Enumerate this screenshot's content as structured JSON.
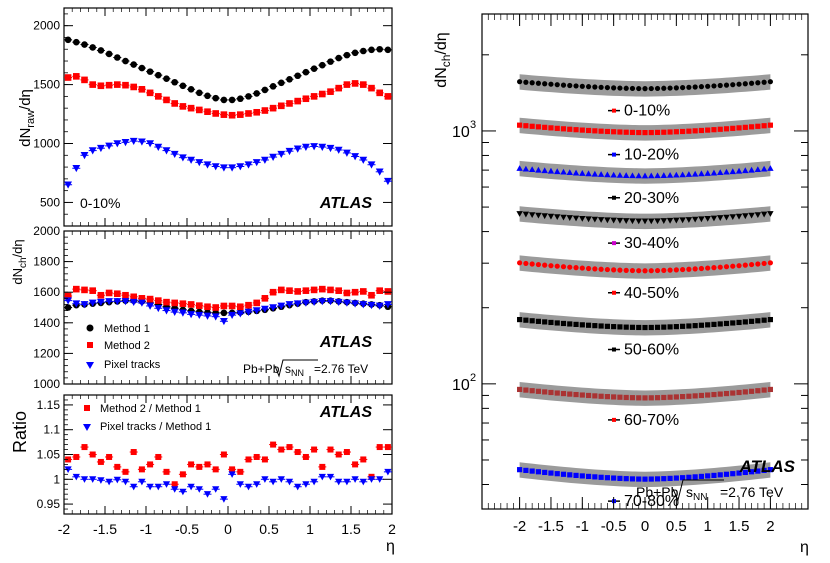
{
  "figure": {
    "atlas_label": "ATLAS",
    "collision": "Pb+Pb",
    "sqrt_s": "s",
    "sqrt_s_sub": "NN",
    "energy": "=2.76 TeV",
    "eta_symbol": "η"
  },
  "chart_data": [
    {
      "id": "raw_top",
      "type": "scatter",
      "ylabel": "dN",
      "ylabel_sub": "raw",
      "ylabel_tail": "/dη",
      "xlim": [
        -2,
        2
      ],
      "ylim": [
        300,
        2150
      ],
      "yticks": [
        500,
        1000,
        1500,
        2000
      ],
      "ytick_labels": [
        "500",
        "1000",
        "1500",
        "2000"
      ],
      "annotation": "0-10%",
      "series": [
        {
          "name": "Method 1",
          "color": "#000000",
          "marker": "circle",
          "x": [
            -1.95,
            -1.85,
            -1.75,
            -1.65,
            -1.55,
            -1.45,
            -1.35,
            -1.25,
            -1.15,
            -1.05,
            -0.95,
            -0.85,
            -0.75,
            -0.65,
            -0.55,
            -0.45,
            -0.35,
            -0.25,
            -0.15,
            -0.05,
            0.05,
            0.15,
            0.25,
            0.35,
            0.45,
            0.55,
            0.65,
            0.75,
            0.85,
            0.95,
            1.05,
            1.15,
            1.25,
            1.35,
            1.45,
            1.55,
            1.65,
            1.75,
            1.85,
            1.95
          ],
          "y": [
            1880,
            1860,
            1840,
            1815,
            1790,
            1760,
            1730,
            1700,
            1670,
            1640,
            1610,
            1580,
            1550,
            1520,
            1490,
            1460,
            1430,
            1405,
            1385,
            1370,
            1370,
            1380,
            1400,
            1425,
            1455,
            1485,
            1515,
            1545,
            1575,
            1605,
            1635,
            1665,
            1695,
            1725,
            1750,
            1770,
            1785,
            1795,
            1800,
            1795
          ]
        },
        {
          "name": "Method 2",
          "color": "#ff0000",
          "marker": "square",
          "x": [
            -1.95,
            -1.85,
            -1.75,
            -1.65,
            -1.55,
            -1.45,
            -1.35,
            -1.25,
            -1.15,
            -1.05,
            -0.95,
            -0.85,
            -0.75,
            -0.65,
            -0.55,
            -0.45,
            -0.35,
            -0.25,
            -0.15,
            -0.05,
            0.05,
            0.15,
            0.25,
            0.35,
            0.45,
            0.55,
            0.65,
            0.75,
            0.85,
            0.95,
            1.05,
            1.15,
            1.25,
            1.35,
            1.45,
            1.55,
            1.65,
            1.75,
            1.85,
            1.95
          ],
          "y": [
            1560,
            1570,
            1540,
            1500,
            1490,
            1495,
            1500,
            1495,
            1480,
            1460,
            1430,
            1400,
            1370,
            1340,
            1315,
            1300,
            1285,
            1270,
            1255,
            1245,
            1240,
            1245,
            1255,
            1265,
            1280,
            1300,
            1320,
            1340,
            1360,
            1380,
            1400,
            1420,
            1440,
            1470,
            1500,
            1510,
            1500,
            1470,
            1430,
            1400
          ]
        },
        {
          "name": "Pixel tracks",
          "color": "#0000ff",
          "marker": "triangle-down",
          "x": [
            -1.95,
            -1.85,
            -1.75,
            -1.65,
            -1.55,
            -1.45,
            -1.35,
            -1.25,
            -1.15,
            -1.05,
            -0.95,
            -0.85,
            -0.75,
            -0.65,
            -0.55,
            -0.45,
            -0.35,
            -0.25,
            -0.15,
            -0.05,
            0.05,
            0.15,
            0.25,
            0.35,
            0.45,
            0.55,
            0.65,
            0.75,
            0.85,
            0.95,
            1.05,
            1.15,
            1.25,
            1.35,
            1.45,
            1.55,
            1.65,
            1.75,
            1.85,
            1.95
          ],
          "y": [
            650,
            790,
            900,
            940,
            960,
            980,
            1000,
            1010,
            1020,
            1015,
            1000,
            970,
            940,
            910,
            880,
            860,
            840,
            820,
            805,
            795,
            795,
            805,
            820,
            840,
            860,
            885,
            910,
            935,
            955,
            970,
            975,
            970,
            960,
            945,
            920,
            890,
            860,
            820,
            760,
            680
          ]
        }
      ]
    },
    {
      "id": "dndeta_middle",
      "type": "scatter",
      "ylabel": "dN",
      "ylabel_sub": "ch",
      "ylabel_tail": "/dη",
      "xlim": [
        -2,
        2
      ],
      "ylim": [
        1000,
        2000
      ],
      "yticks": [
        1000,
        1200,
        1400,
        1600,
        1800,
        2000
      ],
      "ytick_labels": [
        "1000",
        "1200",
        "1400",
        "1600",
        "1800",
        "2000"
      ],
      "series": [
        {
          "name": "Method 1",
          "color": "#000000",
          "marker": "circle",
          "x": [
            -1.95,
            -1.85,
            -1.75,
            -1.65,
            -1.55,
            -1.45,
            -1.35,
            -1.25,
            -1.15,
            -1.05,
            -0.95,
            -0.85,
            -0.75,
            -0.65,
            -0.55,
            -0.45,
            -0.35,
            -0.25,
            -0.15,
            -0.05,
            0.05,
            0.15,
            0.25,
            0.35,
            0.45,
            0.55,
            0.65,
            0.75,
            0.85,
            0.95,
            1.05,
            1.15,
            1.25,
            1.35,
            1.45,
            1.55,
            1.65,
            1.75,
            1.85,
            1.95
          ],
          "y": [
            1500,
            1515,
            1520,
            1525,
            1530,
            1535,
            1540,
            1545,
            1545,
            1540,
            1530,
            1520,
            1505,
            1495,
            1485,
            1478,
            1472,
            1468,
            1465,
            1465,
            1465,
            1468,
            1472,
            1478,
            1485,
            1495,
            1505,
            1515,
            1525,
            1535,
            1540,
            1545,
            1545,
            1540,
            1535,
            1530,
            1525,
            1520,
            1515,
            1505
          ]
        },
        {
          "name": "Method 2",
          "color": "#ff0000",
          "marker": "square",
          "x": [
            -1.95,
            -1.85,
            -1.75,
            -1.65,
            -1.55,
            -1.45,
            -1.35,
            -1.25,
            -1.15,
            -1.05,
            -0.95,
            -0.85,
            -0.75,
            -0.65,
            -0.55,
            -0.45,
            -0.35,
            -0.25,
            -0.15,
            -0.05,
            0.05,
            0.15,
            0.25,
            0.35,
            0.45,
            0.55,
            0.65,
            0.75,
            0.85,
            0.95,
            1.05,
            1.15,
            1.25,
            1.35,
            1.45,
            1.55,
            1.65,
            1.75,
            1.85,
            1.95
          ],
          "y": [
            1575,
            1620,
            1615,
            1610,
            1580,
            1595,
            1590,
            1580,
            1570,
            1560,
            1555,
            1545,
            1535,
            1530,
            1525,
            1520,
            1512,
            1505,
            1500,
            1510,
            1510,
            1505,
            1515,
            1530,
            1560,
            1600,
            1615,
            1610,
            1605,
            1610,
            1615,
            1620,
            1615,
            1610,
            1595,
            1600,
            1605,
            1580,
            1610,
            1605
          ]
        },
        {
          "name": "Pixel tracks",
          "color": "#0000ff",
          "marker": "triangle-down",
          "x": [
            -1.95,
            -1.85,
            -1.75,
            -1.65,
            -1.55,
            -1.45,
            -1.35,
            -1.25,
            -1.15,
            -1.05,
            -0.95,
            -0.85,
            -0.75,
            -0.65,
            -0.55,
            -0.45,
            -0.35,
            -0.25,
            -0.15,
            -0.05,
            0.05,
            0.15,
            0.25,
            0.35,
            0.45,
            0.55,
            0.65,
            0.75,
            0.85,
            0.95,
            1.05,
            1.15,
            1.25,
            1.35,
            1.45,
            1.55,
            1.65,
            1.75,
            1.85,
            1.95
          ],
          "y": [
            1545,
            1525,
            1520,
            1530,
            1535,
            1540,
            1540,
            1540,
            1535,
            1530,
            1510,
            1495,
            1480,
            1470,
            1465,
            1455,
            1450,
            1445,
            1440,
            1410,
            1450,
            1460,
            1470,
            1480,
            1490,
            1500,
            1510,
            1520,
            1525,
            1530,
            1535,
            1540,
            1540,
            1535,
            1530,
            1525,
            1520,
            1515,
            1510,
            1520
          ]
        }
      ],
      "legend": {
        "placement": "bottom-left",
        "entries": [
          "Method 1",
          "Method 2",
          "Pixel tracks"
        ]
      }
    },
    {
      "id": "ratio_bottom",
      "type": "scatter",
      "ylabel": "Ratio",
      "xlabel": "η",
      "xlim": [
        -2,
        2
      ],
      "ylim": [
        0.93,
        1.17
      ],
      "xticks": [
        -2,
        -1.5,
        -1,
        -0.5,
        0,
        0.5,
        1,
        1.5,
        2
      ],
      "xtick_labels": [
        "-2",
        "-1.5",
        "-1",
        "-0.5",
        "0",
        "0.5",
        "1",
        "1.5",
        "2"
      ],
      "yticks": [
        0.95,
        1.0,
        1.05,
        1.1,
        1.15
      ],
      "ytick_labels": [
        "0.95",
        "1",
        "1.05",
        "1.1",
        "1.15"
      ],
      "series": [
        {
          "name": "Method 2 / Method 1",
          "color": "#ff0000",
          "marker": "square",
          "x": [
            -1.95,
            -1.85,
            -1.75,
            -1.65,
            -1.55,
            -1.45,
            -1.35,
            -1.25,
            -1.15,
            -1.05,
            -0.95,
            -0.85,
            -0.75,
            -0.65,
            -0.55,
            -0.45,
            -0.35,
            -0.25,
            -0.15,
            -0.05,
            0.05,
            0.15,
            0.25,
            0.35,
            0.45,
            0.55,
            0.65,
            0.75,
            0.85,
            0.95,
            1.05,
            1.15,
            1.25,
            1.35,
            1.45,
            1.55,
            1.65,
            1.75,
            1.85,
            1.95
          ],
          "y": [
            1.04,
            1.045,
            1.065,
            1.05,
            1.035,
            1.045,
            1.025,
            1.015,
            1.055,
            1.02,
            1.03,
            1.045,
            1.015,
            0.99,
            1.01,
            1.03,
            1.025,
            1.03,
            1.02,
            1.05,
            1.02,
            1.015,
            1.04,
            1.045,
            1.04,
            1.07,
            1.06,
            1.065,
            1.055,
            1.045,
            1.06,
            1.025,
            1.06,
            1.05,
            1.055,
            1.03,
            1.04,
            1.005,
            1.065,
            1.065
          ]
        },
        {
          "name": "Pixel tracks / Method 1",
          "color": "#0000ff",
          "marker": "triangle-down",
          "x": [
            -1.95,
            -1.85,
            -1.75,
            -1.65,
            -1.55,
            -1.45,
            -1.35,
            -1.25,
            -1.15,
            -1.05,
            -0.95,
            -0.85,
            -0.75,
            -0.65,
            -0.55,
            -0.45,
            -0.35,
            -0.25,
            -0.15,
            -0.05,
            0.05,
            0.15,
            0.25,
            0.35,
            0.45,
            0.55,
            0.65,
            0.75,
            0.85,
            0.95,
            1.05,
            1.15,
            1.25,
            1.35,
            1.45,
            1.55,
            1.65,
            1.75,
            1.85,
            1.95
          ],
          "y": [
            1.02,
            1.005,
            1.0,
            1.0,
            0.998,
            0.995,
            0.999,
            0.995,
            0.985,
            0.995,
            0.985,
            0.985,
            0.99,
            0.98,
            0.975,
            0.985,
            0.98,
            0.97,
            0.98,
            0.96,
            1.01,
            0.99,
            0.985,
            0.99,
            1.0,
            0.995,
            1.0,
            0.995,
            0.985,
            0.99,
            0.995,
            1.005,
            1.005,
            0.995,
            0.995,
            1.0,
            0.995,
            1.0,
            1.0,
            1.015
          ]
        }
      ],
      "legend": {
        "placement": "top-left",
        "entries": [
          "Method 2 / Method 1",
          "Pixel tracks / Method 1"
        ]
      }
    },
    {
      "id": "centrality_right",
      "type": "scatter",
      "ylabel": "dN",
      "ylabel_sub": "ch",
      "ylabel_tail": "/dη",
      "xlabel": "η",
      "xlim": [
        -2.6,
        2.6
      ],
      "ylim": [
        32,
        2900
      ],
      "yscale": "log",
      "xticks": [
        -2,
        -1.5,
        -1,
        -0.5,
        0,
        0.5,
        1,
        1.5,
        2
      ],
      "xtick_labels": [
        "-2",
        "-1.5",
        "-1",
        "-0.5",
        "0",
        "0.5",
        "1",
        "1.5",
        "2"
      ],
      "ytick_major": [
        100,
        1000
      ],
      "ytick_major_base": "10",
      "ytick_major_exp": [
        "2",
        "3"
      ],
      "series": [
        {
          "name": "0-10%",
          "color": "#000000",
          "marker": "circle",
          "band": "#8a8a8a",
          "center": 1470,
          "edge": 1.065
        },
        {
          "name": "10-20%",
          "color": "#ff0000",
          "marker": "square",
          "band": "#8a8a8a",
          "center": 985,
          "edge": 1.07
        },
        {
          "name": "20-30%",
          "color": "#0000ff",
          "marker": "triangle-up",
          "band": "#8a8a8a",
          "center": 665,
          "edge": 1.07
        },
        {
          "name": "30-40%",
          "color": "#000000",
          "marker": "triangle-down",
          "band": "#8a8a8a",
          "center": 440,
          "edge": 1.07
        },
        {
          "name": "40-50%",
          "color": "#ff0000",
          "marker": "circle",
          "band": "#8a8a8a",
          "center": 280,
          "edge": 1.075
        },
        {
          "name": "50-60%",
          "color": "#000000",
          "marker": "square",
          "band": "#8a8a8a",
          "center": 167,
          "edge": 1.075
        },
        {
          "name": "60-70%",
          "color": "#aa3333",
          "marker": "square",
          "band": "#8a8a8a",
          "center": 88,
          "edge": 1.08
        },
        {
          "name": "70-80%",
          "color": "#0000ff",
          "marker": "square",
          "band": "#8a8a8a",
          "center": 42,
          "edge": 1.09
        }
      ],
      "legend_marker_colors": [
        "#000000",
        "#ff0000",
        "#0000ff",
        "#000000",
        "#cc00cc",
        "#ff0000",
        "#000000",
        "#ff0000",
        "#0000ff"
      ]
    }
  ]
}
